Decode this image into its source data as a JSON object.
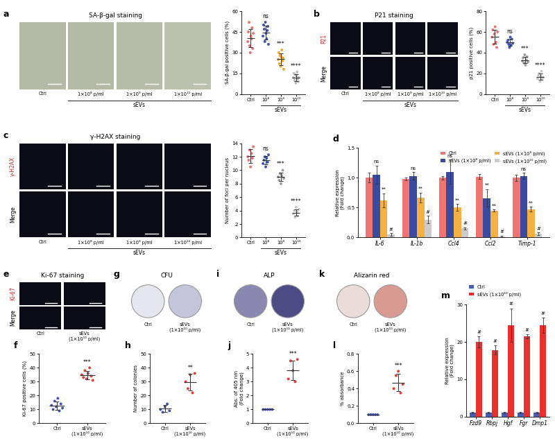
{
  "chart_data": [
    {
      "panel": "a",
      "type": "image",
      "title": "SA-β-gal staining",
      "columns": [
        "Ctrl",
        "1×10⁸ p/ml",
        "1×10⁹ p/ml",
        "1×10¹⁰ p/ml"
      ],
      "group_label": "sEVs",
      "colors": [
        "#b3b9a3",
        "#b3b9a3",
        "#b7bda8",
        "#bcc1ae"
      ]
    },
    {
      "type": "scatter",
      "categories": [
        "Ctrl",
        "10⁸",
        "10⁹",
        "10¹⁰"
      ],
      "group_label": "sEVs",
      "y_label": "SA-β-gal positive cells (%)",
      "points": [
        [
          38,
          45,
          52,
          35,
          30,
          42,
          40,
          48,
          33,
          44
        ],
        [
          42,
          50,
          47,
          38,
          52,
          44,
          40,
          46,
          49,
          36
        ],
        [
          25,
          30,
          22,
          28,
          20,
          27,
          32,
          24,
          26,
          18
        ],
        [
          12,
          15,
          10,
          14,
          8,
          13,
          16,
          11,
          9,
          12
        ]
      ],
      "means": [
        40.7,
        44.4,
        25.2,
        12.0
      ],
      "errors": [
        6.5,
        5.1,
        4.3,
        2.5
      ],
      "annotations": [
        null,
        "ns",
        "***",
        "****"
      ],
      "colors": [
        "#e57373",
        "#3f51b5",
        "#f5a623",
        "#bdbdbd"
      ],
      "marker": "o",
      "ylim": [
        0,
        60
      ],
      "yticks": [
        0,
        15,
        30,
        45,
        60
      ]
    },
    {
      "panel": "b",
      "type": "image",
      "title": "P21 staining",
      "rows": [
        "P21",
        "Merge"
      ],
      "columns": [
        "Ctrl",
        "1×10⁸ p/ml",
        "1×10⁹ p/ml",
        "1×10¹⁰ p/ml"
      ],
      "group_label": "sEVs",
      "colors": [
        "#0b0b16",
        "#0b0b16",
        "#0b0b16",
        "#0b0b16"
      ]
    },
    {
      "type": "scatter",
      "categories": [
        "Ctrl",
        "10⁸",
        "10⁹",
        "10¹⁰"
      ],
      "group_label": "sEVs",
      "y_label": "p21 positive cells (%)",
      "points": [
        [
          55,
          62,
          48,
          58,
          65,
          50,
          45,
          60
        ],
        [
          50,
          52,
          48,
          45,
          55,
          47,
          53,
          49
        ],
        [
          32,
          35,
          30,
          38,
          28,
          33,
          36,
          31
        ],
        [
          15,
          18,
          20,
          12,
          17,
          22,
          14,
          16
        ]
      ],
      "means": [
        55.4,
        49.9,
        32.9,
        16.8
      ],
      "errors": [
        6.7,
        3.2,
        3.2,
        3.2
      ],
      "annotations": [
        null,
        "ns",
        "***",
        "****"
      ],
      "colors": [
        "#e57373",
        "#3f51b5",
        "#9e9e9e",
        "#c8c8c8"
      ],
      "marker": "o",
      "ylim": [
        0,
        80
      ],
      "yticks": [
        0,
        20,
        40,
        60,
        80
      ]
    },
    {
      "panel": "c",
      "type": "image",
      "title": "γ-H2AX staining",
      "rows": [
        "γ-H2AX",
        "Merge"
      ],
      "columns": [
        "Ctrl",
        "1×10⁸ p/ml",
        "1×10⁹ p/ml",
        "1×10¹⁰ p/ml"
      ],
      "group_label": "sEVs",
      "colors": [
        "#0b0b16",
        "#0b0b16",
        "#0b0b16",
        "#0b0b16"
      ]
    },
    {
      "type": "scatter",
      "categories": [
        "Ctrl",
        "10⁸",
        "10⁹",
        "10¹⁰"
      ],
      "group_label": "sEVs",
      "y_label": "Number of foci per nucleus",
      "points": [
        [
          12,
          11.5,
          13,
          10.5,
          12.5,
          11.8,
          13.5
        ],
        [
          11,
          11.5,
          12,
          10.5,
          11.8,
          11.2,
          12.3
        ],
        [
          9,
          8.5,
          9.5,
          8,
          9.2,
          10,
          8.8
        ],
        [
          3.5,
          4,
          3,
          4.5,
          3.8,
          3.2,
          4.2
        ]
      ],
      "means": [
        12.1,
        11.5,
        9.0,
        3.7
      ],
      "errors": [
        1.0,
        0.6,
        0.6,
        0.5
      ],
      "annotations": [
        null,
        "ns",
        "***",
        "****"
      ],
      "colors": [
        "#e57373",
        "#3f51b5",
        "#9e9e9e",
        "#c8c8c8"
      ],
      "marker": "o",
      "ylim": [
        0,
        14
      ],
      "yticks": [
        0,
        2,
        4,
        6,
        8,
        10,
        12,
        14
      ]
    },
    {
      "panel": "d",
      "type": "bar",
      "categories": [
        "IL-6",
        "IL-1b",
        "Ccl4",
        "Ccl2",
        "Timp-1"
      ],
      "y_label": "Relative expression\n(Fold change)",
      "legend": "upper right",
      "series": [
        {
          "name": "Ctrl",
          "color": "#f07470",
          "values": [
            1.0,
            0.98,
            1.0,
            1.02,
            1.0
          ],
          "errors": [
            0.08,
            0.02,
            0.03,
            0.04,
            0.05
          ],
          "annotations": [
            null,
            null,
            null,
            null,
            null
          ]
        },
        {
          "name": "sEVs (1×10⁸ p/ml)",
          "color": "#3a4a9e",
          "values": [
            1.05,
            1.03,
            1.1,
            0.66,
            1.03
          ],
          "errors": [
            0.15,
            0.06,
            0.2,
            0.15,
            0.05
          ],
          "annotations": [
            "ns",
            "ns",
            "ns",
            "**",
            "ns"
          ]
        },
        {
          "name": "sEVs (1×10⁹ p/ml)",
          "color": "#f6b042",
          "values": [
            0.62,
            0.67,
            0.5,
            0.45,
            0.47
          ],
          "errors": [
            0.12,
            0.08,
            0.06,
            0.02,
            0.04
          ],
          "annotations": [
            "**",
            "**",
            "**",
            "**",
            "**"
          ]
        },
        {
          "name": "sEVs (1×10¹⁰ p/ml)",
          "color": "#cccccc",
          "values": [
            0.05,
            0.3,
            0.15,
            0.02,
            0.06
          ],
          "errors": [
            0.02,
            0.06,
            0.02,
            0.01,
            0.02
          ],
          "annotations": [
            "#",
            "#",
            "#",
            "#",
            "#"
          ]
        }
      ],
      "ylim": [
        0,
        1.5
      ],
      "yticks": [
        {
          "value": 0,
          "label": "0.0"
        },
        0.5,
        {
          "value": 1,
          "label": "1.0"
        },
        1.5
      ]
    },
    {
      "panel": "e",
      "type": "image",
      "title": "Ki-67 staining",
      "rows": [
        "Ki-67",
        "Merge"
      ],
      "columns": [
        "Ctrl",
        "sEVs\n(1×10¹⁰ p/ml)"
      ],
      "colors": [
        "#0b0b16",
        "#0b0b16"
      ]
    },
    {
      "panel": "f",
      "type": "scatter",
      "categories": [
        "Ctrl",
        "sEVs\n(1×10¹⁰ p/ml)"
      ],
      "y_label": "Ki-67 positive cells (%)",
      "points": [
        [
          13,
          10,
          16,
          12,
          18,
          9,
          14,
          11
        ],
        [
          35,
          33,
          38,
          32,
          36,
          40,
          34,
          31
        ]
      ],
      "means": [
        12.9,
        34.9
      ],
      "errors": [
        3.0,
        3.0
      ],
      "annotations": [
        null,
        "***"
      ],
      "colors": [
        "#3f51b5",
        "#e53935"
      ],
      "marker": "o",
      "ylim": [
        0,
        50
      ],
      "yticks": [
        0,
        10,
        20,
        30,
        40,
        50
      ]
    },
    {
      "panel": "g",
      "type": "plate",
      "title": "CFU",
      "columns": [
        "Ctrl",
        "sEVs\n(1×10¹⁰ p/ml)"
      ],
      "colors": [
        "#e6e6ee",
        "#c4c4da"
      ]
    },
    {
      "panel": "h",
      "type": "scatter",
      "categories": [
        "Ctrl",
        "sEVs\n(1×10¹⁰ p/ml)"
      ],
      "y_label": "Number of colonies",
      "points": [
        [
          10,
          8,
          12,
          14,
          9
        ],
        [
          30,
          25,
          35,
          22,
          36
        ]
      ],
      "means": [
        10.6,
        29.6
      ],
      "errors": [
        2.4,
        6.0
      ],
      "annotations": [
        null,
        "**"
      ],
      "colors": [
        "#3f51b5",
        "#e53935"
      ],
      "marker": "o",
      "ylim": [
        0,
        50
      ],
      "yticks": [
        0,
        10,
        20,
        30,
        40,
        50
      ]
    },
    {
      "panel": "i",
      "type": "plate",
      "title": "ALP",
      "columns": [
        "Ctrl",
        "sEVs\n(1×10¹⁰ p/ml)"
      ],
      "colors": [
        "#8a88b0",
        "#4d4a86"
      ]
    },
    {
      "panel": "j",
      "type": "scatter",
      "categories": [
        "Ctrl",
        "sEVs\n(1×10¹⁰ p/ml)"
      ],
      "y_label": "Abs. of 405 nm\n(Fold change)",
      "points": [
        [
          1,
          1,
          1,
          1,
          1
        ],
        [
          3.2,
          4.5,
          3.8,
          3.0,
          4.6
        ]
      ],
      "means": [
        1,
        3.82
      ],
      "errors": [
        0,
        0.7
      ],
      "annotations": [
        null,
        "***"
      ],
      "colors": [
        "#3f51b5",
        "#e53935"
      ],
      "marker": "o",
      "ylim": [
        0,
        5
      ],
      "yticks": [
        0,
        1,
        2,
        3,
        4,
        5
      ]
    },
    {
      "panel": "k",
      "type": "plate",
      "title": "Alizarin red",
      "columns": [
        "Ctrl",
        "sEVs\n(1×10¹⁰ p/ml)"
      ],
      "colors": [
        "#eadcd8",
        "#d99a92"
      ]
    },
    {
      "panel": "l",
      "type": "scatter",
      "categories": [
        "Ctrl",
        "sEVs\n(1×10¹⁰ p/ml)"
      ],
      "y_label": "% absorbance",
      "points": [
        [
          0.1,
          0.1,
          0.1,
          0.1,
          0.1
        ],
        [
          0.4,
          0.55,
          0.6,
          0.35,
          0.45
        ]
      ],
      "means": [
        0.1,
        0.47
      ],
      "errors": [
        0,
        0.1
      ],
      "annotations": [
        null,
        "***"
      ],
      "colors": [
        "#3f51b5",
        "#e53935"
      ],
      "marker": "o",
      "ylim": [
        0,
        0.8
      ],
      "yticks": [
        {
          "value": 0,
          "label": "0.0"
        },
        0.2,
        0.4,
        0.6,
        0.8
      ]
    },
    {
      "panel": "m",
      "type": "bar",
      "categories": [
        "Fzd9",
        "Rbpj",
        "Hgf",
        "Fgr",
        "Dmp1"
      ],
      "y_label": "Relative expression\n(Fold change)",
      "legend": "upper left",
      "series": [
        {
          "name": "Ctrl",
          "color": "#4b5db3",
          "values": [
            1,
            1,
            1,
            1,
            1
          ],
          "errors": [
            0.2,
            0.2,
            0.2,
            0.2,
            0.2
          ],
          "annotations": [
            null,
            null,
            null,
            null,
            null
          ]
        },
        {
          "name": "sEVs (1×10¹⁰ p/ml)",
          "color": "#e8312f",
          "values": [
            20,
            17.8,
            24.5,
            21.5,
            24.5
          ],
          "errors": [
            1.5,
            1.2,
            4.5,
            0.6,
            2.0
          ],
          "annotations": [
            "#",
            "#",
            "#",
            "#",
            "#"
          ]
        }
      ],
      "ylim": [
        0,
        30
      ],
      "yticks": [
        0,
        10,
        20,
        30
      ]
    }
  ]
}
